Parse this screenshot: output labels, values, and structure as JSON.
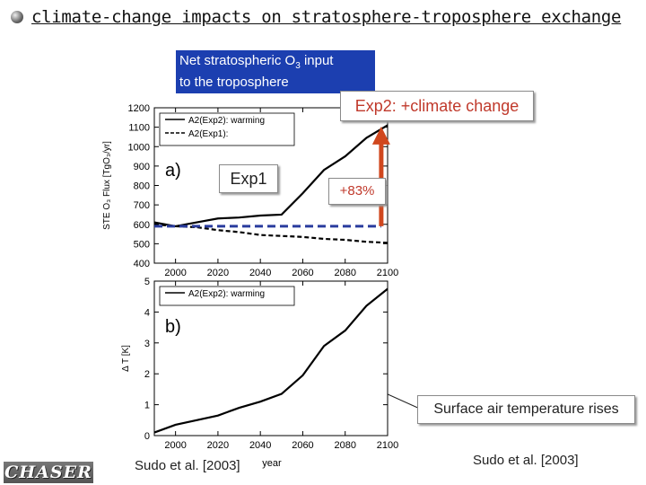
{
  "slide": {
    "title": "climate-change impacts on stratosphere-troposphere exchange",
    "callout_input_line1": "Net stratospheric O",
    "callout_input_sub": "3",
    "callout_input_line1_end": " input",
    "callout_input_line2": "to the troposphere",
    "callout_exp2": "Exp2: +climate change",
    "callout_exp1": "Exp1",
    "callout_percent": "+83%",
    "callout_surface": "Surface air temperature rises",
    "citation_left": "Sudo et al. [2003]",
    "citation_right": "Sudo et al. [2003]",
    "logo_text": "CHASER",
    "colors": {
      "callout_blue": "#1c3fb0",
      "dashed_line": "#2a3c9e",
      "arrow": "#d0471e",
      "red_text": "#c0392b"
    }
  },
  "chart_data": [
    {
      "type": "line",
      "panel_label": "a)",
      "ylabel": "STE O₃ Flux [TgO₃/yr]",
      "ylim": [
        400,
        1200
      ],
      "xlim": [
        1990,
        2100
      ],
      "xticks": [
        2000,
        2020,
        2040,
        2060,
        2080,
        2100
      ],
      "yticks": [
        400,
        500,
        600,
        700,
        800,
        900,
        1000,
        1100,
        1200
      ],
      "legend_placement": "top-left",
      "series": [
        {
          "name": "A2(Exp2): warming",
          "style": "solid",
          "x": [
            1990,
            2000,
            2010,
            2020,
            2030,
            2040,
            2050,
            2060,
            2070,
            2080,
            2090,
            2100
          ],
          "y": [
            610,
            590,
            610,
            630,
            635,
            645,
            650,
            760,
            880,
            950,
            1045,
            1110
          ]
        },
        {
          "name": "A2(Exp1):",
          "style": "dashed",
          "x": [
            1990,
            2000,
            2010,
            2020,
            2030,
            2040,
            2050,
            2060,
            2070,
            2080,
            2090,
            2100
          ],
          "y": [
            600,
            590,
            585,
            570,
            560,
            545,
            540,
            535,
            525,
            520,
            510,
            505
          ]
        }
      ],
      "reference_level": 590,
      "arrow_from": 590,
      "arrow_to": 1085,
      "arrow_x": 2097
    },
    {
      "type": "line",
      "panel_label": "b)",
      "xlabel": "year",
      "ylabel": "Δ T [K]",
      "ylim": [
        0,
        5
      ],
      "xlim": [
        1990,
        2100
      ],
      "xticks": [
        2000,
        2020,
        2040,
        2060,
        2080,
        2100
      ],
      "yticks": [
        0,
        1,
        2,
        3,
        4,
        5
      ],
      "legend_placement": "top-left",
      "series": [
        {
          "name": "A2(Exp2): warming",
          "style": "solid",
          "x": [
            1990,
            2000,
            2010,
            2020,
            2030,
            2040,
            2050,
            2060,
            2070,
            2080,
            2090,
            2100
          ],
          "y": [
            0.1,
            0.35,
            0.5,
            0.65,
            0.9,
            1.1,
            1.35,
            1.95,
            2.9,
            3.4,
            4.2,
            4.75
          ]
        }
      ]
    }
  ]
}
